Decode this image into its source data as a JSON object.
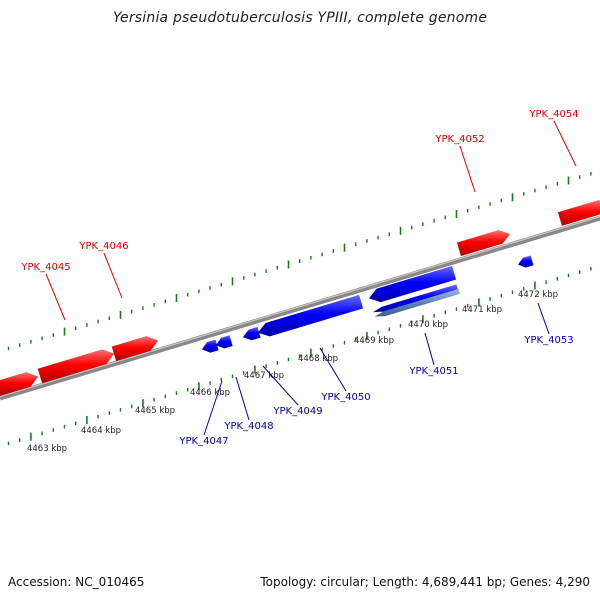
{
  "title": "Yersinia pseudotuberculosis YPIII, complete genome",
  "footer": {
    "accession": "Accession: NC_010465",
    "meta": "Topology: circular; Length: 4,689,441 bp; Genes: 4,290"
  },
  "colors": {
    "forward_gene": "#ff0000",
    "reverse_gene": "#0000ff",
    "forward_label": "#dd0000",
    "reverse_label": "#0000aa",
    "backbone": "#888888",
    "ticks": "#1a7a1a",
    "scale_text": "#222222"
  },
  "scale_ticks": [
    "4463 kbp",
    "4464 kbp",
    "4465 kbp",
    "4466 kbp",
    "4467 kbp",
    "4468 kbp",
    "4469 kbp",
    "4470 kbp",
    "4471 kbp",
    "4472 kbp"
  ],
  "forward_genes": [
    "YPK_4045",
    "YPK_4046",
    "YPK_4052",
    "YPK_4054"
  ],
  "reverse_genes": [
    "YPK_4047",
    "YPK_4048",
    "YPK_4049",
    "YPK_4050",
    "YPK_4051",
    "YPK_4053"
  ]
}
